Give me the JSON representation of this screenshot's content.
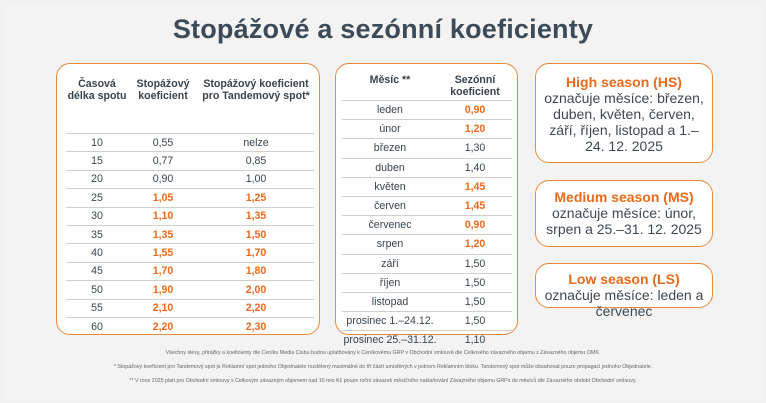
{
  "title": "Stopážové a sezónní koeficienty",
  "spot_table": {
    "headers": [
      "Časová délka spotu",
      "Stopážový koeficient",
      "Stopážový koeficient pro Tandemový spot*"
    ],
    "rows": [
      {
        "length": "10",
        "coef": "0,55",
        "tandem": "nelze",
        "hl": false
      },
      {
        "length": "15",
        "coef": "0,77",
        "tandem": "0,85",
        "hl": false
      },
      {
        "length": "20",
        "coef": "0,90",
        "tandem": "1,00",
        "hl": false
      },
      {
        "length": "25",
        "coef": "1,05",
        "tandem": "1,25",
        "hl": true
      },
      {
        "length": "30",
        "coef": "1,10",
        "tandem": "1,35",
        "hl": true
      },
      {
        "length": "35",
        "coef": "1,35",
        "tandem": "1,50",
        "hl": true
      },
      {
        "length": "40",
        "coef": "1,55",
        "tandem": "1,70",
        "hl": true
      },
      {
        "length": "45",
        "coef": "1,70",
        "tandem": "1,80",
        "hl": true
      },
      {
        "length": "50",
        "coef": "1,90",
        "tandem": "2,00",
        "hl": true
      },
      {
        "length": "55",
        "coef": "2,10",
        "tandem": "2,20",
        "hl": true
      },
      {
        "length": "60",
        "coef": "2,20",
        "tandem": "2,30",
        "hl": true
      }
    ]
  },
  "season_table": {
    "headers": [
      "Měsíc **",
      "Sezónní koeficient"
    ],
    "rows": [
      {
        "month": "leden",
        "coef": "0,90",
        "hl": true
      },
      {
        "month": "únor",
        "coef": "1,20",
        "hl": true
      },
      {
        "month": "březen",
        "coef": "1,30",
        "hl": false
      },
      {
        "month": "duben",
        "coef": "1,40",
        "hl": false
      },
      {
        "month": "květen",
        "coef": "1,45",
        "hl": true
      },
      {
        "month": "červen",
        "coef": "1,45",
        "hl": true
      },
      {
        "month": "červenec",
        "coef": "0,90",
        "hl": true
      },
      {
        "month": "srpen",
        "coef": "1,20",
        "hl": true
      },
      {
        "month": "září",
        "coef": "1,50",
        "hl": false
      },
      {
        "month": "říjen",
        "coef": "1,50",
        "hl": false
      },
      {
        "month": "listopad",
        "coef": "1,50",
        "hl": false
      },
      {
        "month": "prosinec 1.–24.12.",
        "coef": "1,50",
        "hl": false
      },
      {
        "month": "prosinec 25.–31.12.",
        "coef": "1,10",
        "hl": false
      }
    ]
  },
  "seasons": {
    "high": {
      "label": "High season (HS)",
      "text": "označuje měsíce: březen, duben, květen, červen, září, říjen, listopad a 1.–24. 12. 2025"
    },
    "medium": {
      "label": "Medium season (MS)",
      "text": "označuje měsíce: únor, srpen a 25.–31. 12. 2025"
    },
    "low": {
      "label": "Low season (LS)",
      "text": "označuje měsíce: leden a červenec"
    }
  },
  "footnotes": [
    "Všechny slevy, přirážky a koeficienty dle Ceníku Media Clubu budou uplatňovány k Ceníkovému GRP v Obchodní smlouvě dle Celkového závazného objemu z Závazného objemu OMK.",
    "* Stopážový koeficient pro Tandemový spot je Reklamní spot jednoho Objednatele rozdělený maximálně do tří částí umístěných v jednom Reklamním bloku. Tandemový spot může obsahovat pouze propagaci jednoho Objednatele.",
    "** V roce 2025 platí pro Obchodní smlouvy s Celkovým závazným objemem nad 10 mio Kč pouze roční závazek měsíčního naklaňování Závazného objemu GRPs do měsíců dle Závazného období Obchodní smlouvy."
  ]
}
